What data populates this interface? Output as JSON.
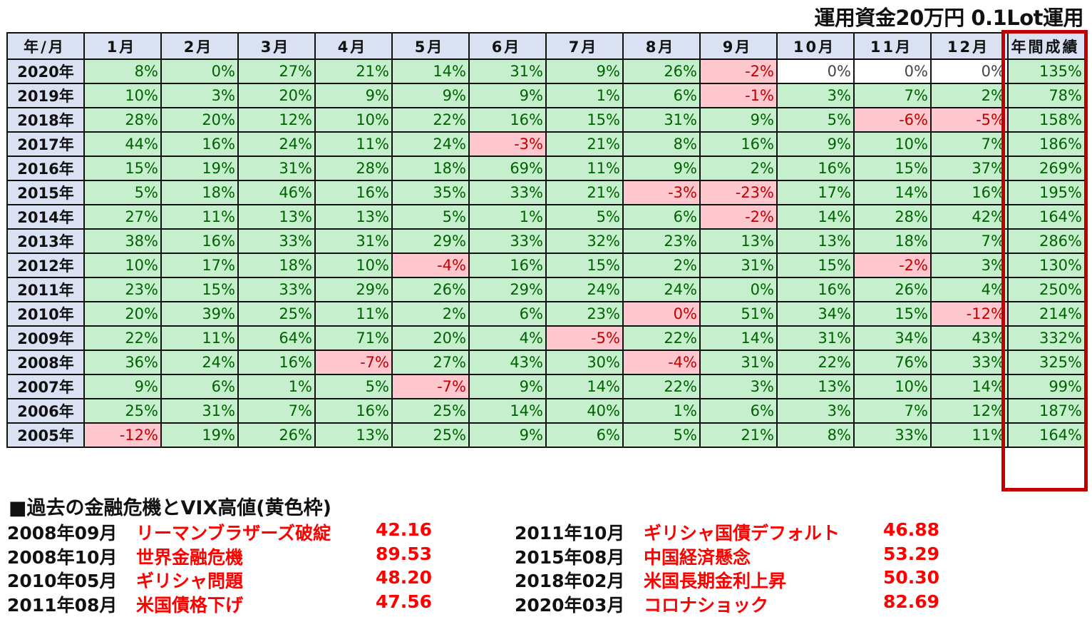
{
  "title": "運用資金20万円 0.1Lot運用",
  "headers": [
    "年/月",
    "1月",
    "2月",
    "3月",
    "4月",
    "5月",
    "6月",
    "7月",
    "8月",
    "9月",
    "10月",
    "11月",
    "12月",
    "年間成績"
  ],
  "rows": [
    {
      "year": "2020年",
      "cells": [
        [
          "8%",
          "g"
        ],
        [
          "0%",
          "g"
        ],
        [
          "27%",
          "g"
        ],
        [
          "21%",
          "g"
        ],
        [
          "14%",
          "g"
        ],
        [
          "31%",
          "g"
        ],
        [
          "9%",
          "g"
        ],
        [
          "26%",
          "g"
        ],
        [
          "-2%",
          "r"
        ],
        [
          "0%",
          "w"
        ],
        [
          "0%",
          "w"
        ],
        [
          "0%",
          "w"
        ],
        [
          "135%",
          "g"
        ]
      ]
    },
    {
      "year": "2019年",
      "cells": [
        [
          "10%",
          "g"
        ],
        [
          "3%",
          "g"
        ],
        [
          "20%",
          "g"
        ],
        [
          "9%",
          "g"
        ],
        [
          "9%",
          "g"
        ],
        [
          "9%",
          "g"
        ],
        [
          "1%",
          "g"
        ],
        [
          "6%",
          "g"
        ],
        [
          "-1%",
          "r"
        ],
        [
          "3%",
          "g"
        ],
        [
          "7%",
          "g"
        ],
        [
          "2%",
          "g"
        ],
        [
          "78%",
          "g"
        ]
      ]
    },
    {
      "year": "2018年",
      "cells": [
        [
          "28%",
          "g"
        ],
        [
          "20%",
          "g"
        ],
        [
          "12%",
          "g"
        ],
        [
          "10%",
          "g"
        ],
        [
          "22%",
          "g"
        ],
        [
          "16%",
          "g"
        ],
        [
          "15%",
          "g"
        ],
        [
          "31%",
          "g"
        ],
        [
          "9%",
          "g"
        ],
        [
          "5%",
          "g"
        ],
        [
          "-6%",
          "r"
        ],
        [
          "-5%",
          "r"
        ],
        [
          "158%",
          "g"
        ]
      ]
    },
    {
      "year": "2017年",
      "cells": [
        [
          "44%",
          "g"
        ],
        [
          "16%",
          "g"
        ],
        [
          "24%",
          "g"
        ],
        [
          "11%",
          "g"
        ],
        [
          "24%",
          "g"
        ],
        [
          "-3%",
          "r"
        ],
        [
          "21%",
          "g"
        ],
        [
          "8%",
          "g"
        ],
        [
          "16%",
          "g"
        ],
        [
          "9%",
          "g"
        ],
        [
          "10%",
          "g"
        ],
        [
          "7%",
          "g"
        ],
        [
          "186%",
          "g"
        ]
      ]
    },
    {
      "year": "2016年",
      "cells": [
        [
          "15%",
          "g"
        ],
        [
          "19%",
          "g"
        ],
        [
          "31%",
          "g"
        ],
        [
          "28%",
          "g"
        ],
        [
          "18%",
          "g"
        ],
        [
          "69%",
          "g"
        ],
        [
          "11%",
          "g"
        ],
        [
          "9%",
          "g"
        ],
        [
          "2%",
          "g"
        ],
        [
          "16%",
          "g"
        ],
        [
          "15%",
          "g"
        ],
        [
          "37%",
          "g"
        ],
        [
          "269%",
          "g"
        ]
      ]
    },
    {
      "year": "2015年",
      "cells": [
        [
          "5%",
          "g"
        ],
        [
          "18%",
          "g"
        ],
        [
          "46%",
          "g"
        ],
        [
          "16%",
          "g"
        ],
        [
          "35%",
          "g"
        ],
        [
          "33%",
          "g"
        ],
        [
          "21%",
          "g"
        ],
        [
          "-3%",
          "r"
        ],
        [
          "-23%",
          "r"
        ],
        [
          "17%",
          "g"
        ],
        [
          "14%",
          "g"
        ],
        [
          "16%",
          "g"
        ],
        [
          "195%",
          "g"
        ]
      ]
    },
    {
      "year": "2014年",
      "cells": [
        [
          "27%",
          "g"
        ],
        [
          "11%",
          "g"
        ],
        [
          "13%",
          "g"
        ],
        [
          "13%",
          "g"
        ],
        [
          "5%",
          "g"
        ],
        [
          "1%",
          "g"
        ],
        [
          "5%",
          "g"
        ],
        [
          "6%",
          "g"
        ],
        [
          "-2%",
          "r"
        ],
        [
          "14%",
          "g"
        ],
        [
          "28%",
          "g"
        ],
        [
          "42%",
          "g"
        ],
        [
          "164%",
          "g"
        ]
      ]
    },
    {
      "year": "2013年",
      "cells": [
        [
          "38%",
          "g"
        ],
        [
          "16%",
          "g"
        ],
        [
          "33%",
          "g"
        ],
        [
          "31%",
          "g"
        ],
        [
          "29%",
          "g"
        ],
        [
          "33%",
          "g"
        ],
        [
          "32%",
          "g"
        ],
        [
          "23%",
          "g"
        ],
        [
          "13%",
          "g"
        ],
        [
          "13%",
          "g"
        ],
        [
          "18%",
          "g"
        ],
        [
          "7%",
          "g"
        ],
        [
          "286%",
          "g"
        ]
      ]
    },
    {
      "year": "2012年",
      "cells": [
        [
          "10%",
          "g"
        ],
        [
          "17%",
          "g"
        ],
        [
          "18%",
          "g"
        ],
        [
          "10%",
          "g"
        ],
        [
          "-4%",
          "r"
        ],
        [
          "16%",
          "g"
        ],
        [
          "15%",
          "g"
        ],
        [
          "2%",
          "g"
        ],
        [
          "31%",
          "g"
        ],
        [
          "15%",
          "g"
        ],
        [
          "-2%",
          "r"
        ],
        [
          "3%",
          "g"
        ],
        [
          "130%",
          "g"
        ]
      ]
    },
    {
      "year": "2011年",
      "cells": [
        [
          "23%",
          "g"
        ],
        [
          "15%",
          "g"
        ],
        [
          "33%",
          "g"
        ],
        [
          "29%",
          "g"
        ],
        [
          "26%",
          "g"
        ],
        [
          "29%",
          "g"
        ],
        [
          "24%",
          "g"
        ],
        [
          "24%",
          "g"
        ],
        [
          "0%",
          "g"
        ],
        [
          "16%",
          "g"
        ],
        [
          "26%",
          "g"
        ],
        [
          "4%",
          "g"
        ],
        [
          "250%",
          "g"
        ]
      ]
    },
    {
      "year": "2010年",
      "cells": [
        [
          "20%",
          "g"
        ],
        [
          "39%",
          "g"
        ],
        [
          "25%",
          "g"
        ],
        [
          "11%",
          "g"
        ],
        [
          "2%",
          "g"
        ],
        [
          "6%",
          "g"
        ],
        [
          "23%",
          "g"
        ],
        [
          "0%",
          "r"
        ],
        [
          "51%",
          "g"
        ],
        [
          "34%",
          "g"
        ],
        [
          "15%",
          "g"
        ],
        [
          "-12%",
          "r"
        ],
        [
          "214%",
          "g"
        ]
      ]
    },
    {
      "year": "2009年",
      "cells": [
        [
          "22%",
          "g"
        ],
        [
          "11%",
          "g"
        ],
        [
          "64%",
          "g"
        ],
        [
          "71%",
          "g"
        ],
        [
          "20%",
          "g"
        ],
        [
          "4%",
          "g"
        ],
        [
          "-5%",
          "r"
        ],
        [
          "22%",
          "g"
        ],
        [
          "14%",
          "g"
        ],
        [
          "31%",
          "g"
        ],
        [
          "34%",
          "g"
        ],
        [
          "43%",
          "g"
        ],
        [
          "332%",
          "g"
        ]
      ]
    },
    {
      "year": "2008年",
      "cells": [
        [
          "36%",
          "g"
        ],
        [
          "24%",
          "g"
        ],
        [
          "16%",
          "g"
        ],
        [
          "-7%",
          "r"
        ],
        [
          "27%",
          "g"
        ],
        [
          "43%",
          "g"
        ],
        [
          "30%",
          "g"
        ],
        [
          "-4%",
          "r"
        ],
        [
          "31%",
          "g"
        ],
        [
          "22%",
          "g"
        ],
        [
          "76%",
          "g"
        ],
        [
          "33%",
          "g"
        ],
        [
          "325%",
          "g"
        ]
      ]
    },
    {
      "year": "2007年",
      "cells": [
        [
          "9%",
          "g"
        ],
        [
          "6%",
          "g"
        ],
        [
          "1%",
          "g"
        ],
        [
          "5%",
          "g"
        ],
        [
          "-7%",
          "r"
        ],
        [
          "9%",
          "g"
        ],
        [
          "14%",
          "g"
        ],
        [
          "22%",
          "g"
        ],
        [
          "3%",
          "g"
        ],
        [
          "13%",
          "g"
        ],
        [
          "10%",
          "g"
        ],
        [
          "14%",
          "g"
        ],
        [
          "99%",
          "g"
        ]
      ]
    },
    {
      "year": "2006年",
      "cells": [
        [
          "25%",
          "g"
        ],
        [
          "31%",
          "g"
        ],
        [
          "7%",
          "g"
        ],
        [
          "16%",
          "g"
        ],
        [
          "25%",
          "g"
        ],
        [
          "14%",
          "g"
        ],
        [
          "40%",
          "g"
        ],
        [
          "1%",
          "g"
        ],
        [
          "6%",
          "g"
        ],
        [
          "3%",
          "g"
        ],
        [
          "7%",
          "g"
        ],
        [
          "12%",
          "g"
        ],
        [
          "187%",
          "g"
        ]
      ]
    },
    {
      "year": "2005年",
      "cells": [
        [
          "-12%",
          "r"
        ],
        [
          "19%",
          "g"
        ],
        [
          "26%",
          "g"
        ],
        [
          "13%",
          "g"
        ],
        [
          "25%",
          "g"
        ],
        [
          "9%",
          "g"
        ],
        [
          "6%",
          "g"
        ],
        [
          "5%",
          "g"
        ],
        [
          "21%",
          "g"
        ],
        [
          "8%",
          "g"
        ],
        [
          "33%",
          "g"
        ],
        [
          "11%",
          "g"
        ],
        [
          "164%",
          "g"
        ]
      ]
    }
  ],
  "crisis_title": "■過去の金融危機とVIX高値(黄色枠)",
  "crises": [
    {
      "date": "2008年09月",
      "name": "リーマンブラザーズ破綻",
      "vix": "42.16"
    },
    {
      "date": "2008年10月",
      "name": "世界金融危機",
      "vix": "89.53"
    },
    {
      "date": "2010年05月",
      "name": "ギリシャ問題",
      "vix": "48.20"
    },
    {
      "date": "2011年08月",
      "name": "米国債格下げ",
      "vix": "47.56"
    },
    {
      "date": "2011年10月",
      "name": "ギリシャ国債デフォルト",
      "vix": "46.88"
    },
    {
      "date": "2015年08月",
      "name": "中国経済懸念",
      "vix": "53.29"
    },
    {
      "date": "2018年02月",
      "name": "米国長期金利上昇",
      "vix": "50.30"
    },
    {
      "date": "2020年03月",
      "name": "コロナショック",
      "vix": "82.69"
    }
  ]
}
